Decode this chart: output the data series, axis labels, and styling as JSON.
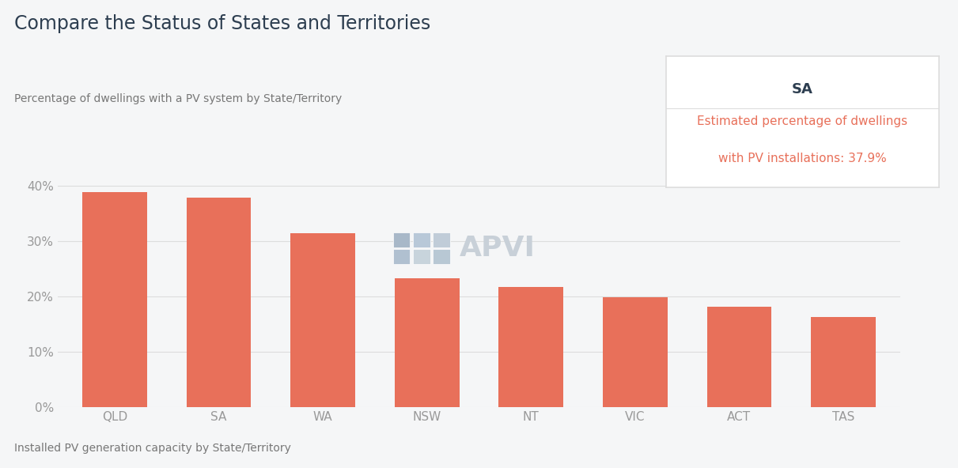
{
  "title": "Compare the Status of States and Territories",
  "subtitle": "Percentage of dwellings with a PV system by State/Territory",
  "footer": "Installed PV generation capacity by State/Territory",
  "categories": [
    "QLD",
    "SA",
    "WA",
    "NSW",
    "NT",
    "VIC",
    "ACT",
    "TAS"
  ],
  "values": [
    38.9,
    37.9,
    31.4,
    23.3,
    21.8,
    19.9,
    18.2,
    16.3
  ],
  "bar_color": "#E8705A",
  "background_color": "#f5f6f7",
  "title_color": "#2d3e50",
  "subtitle_color": "#777777",
  "footer_color": "#777777",
  "ytick_labels": [
    "0%",
    "10%",
    "20%",
    "30%",
    "40%"
  ],
  "ytick_values": [
    0,
    10,
    20,
    30,
    40
  ],
  "ylim": [
    0,
    44
  ],
  "grid_color": "#dddddd",
  "tooltip_title": "SA",
  "tooltip_title_color": "#2d3e50",
  "tooltip_text_line1": "Estimated percentage of dwellings",
  "tooltip_text_line2": "with PV installations: 37.9%",
  "tooltip_text_color": "#E8705A",
  "tooltip_bg": "#ffffff",
  "tooltip_border": "#dddddd",
  "apvi_text": "APVI",
  "apvi_color": "#c8d0d8"
}
